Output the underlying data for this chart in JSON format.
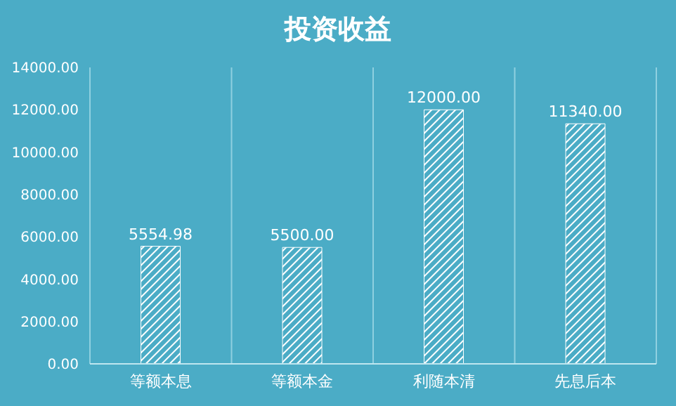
{
  "chart_data": {
    "type": "bar",
    "title": "投资收益",
    "categories": [
      "等额本息",
      "等额本金",
      "利随本清",
      "先息后本"
    ],
    "values": [
      5554.98,
      5500,
      12000,
      11340
    ],
    "value_labels": [
      "5554.98",
      "5500.00",
      "12000.00",
      "11340.00"
    ],
    "color": "#ffffff",
    "ylim": [
      0,
      14000
    ],
    "yticks": [
      {
        "value": 0,
        "label": "0.00"
      },
      {
        "value": 2000,
        "label": "2000.00"
      },
      {
        "value": 4000,
        "label": "4000.00"
      },
      {
        "value": 6000,
        "label": "6000.00"
      },
      {
        "value": 8000,
        "label": "8000.00"
      },
      {
        "value": 10000,
        "label": "10000.00"
      },
      {
        "value": 12000,
        "label": "12000.00"
      },
      {
        "value": 14000,
        "label": "14000.00"
      }
    ],
    "grid": "x"
  }
}
